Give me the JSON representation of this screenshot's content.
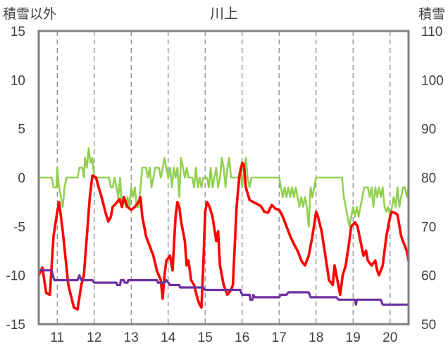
{
  "chart_data": {
    "type": "line",
    "title": "川上",
    "ylabel_left": "積雪以外",
    "ylabel_right": "積雪",
    "x_ticks": [
      "11",
      "12",
      "13",
      "14",
      "15",
      "16",
      "17",
      "18",
      "19",
      "20"
    ],
    "x_start": 10.5,
    "x_end": 20.5,
    "ylim_left": [
      -15,
      15
    ],
    "ylim_right": [
      50,
      110
    ],
    "yticks_left": [
      "15",
      "10",
      "5",
      "0",
      "-5",
      "-10",
      "-15"
    ],
    "yticks_right": [
      "110",
      "100",
      "90",
      "80",
      "70",
      "60",
      "50"
    ],
    "grid": "vertical dashed lines at each day",
    "series": [
      {
        "axis": "left",
        "color": "#ff0000",
        "points": [
          [
            10.5,
            -10
          ],
          [
            10.6,
            -9.2
          ],
          [
            10.7,
            -11.8
          ],
          [
            10.8,
            -12
          ],
          [
            10.9,
            -6
          ],
          [
            11.0,
            -3.5
          ],
          [
            11.05,
            -2.5
          ],
          [
            11.15,
            -5.5
          ],
          [
            11.3,
            -11
          ],
          [
            11.45,
            -13.3
          ],
          [
            11.55,
            -13.5
          ],
          [
            11.65,
            -11
          ],
          [
            11.72,
            -10
          ],
          [
            11.8,
            -6
          ],
          [
            11.88,
            -2
          ],
          [
            11.95,
            0.2
          ],
          [
            12.05,
            0
          ],
          [
            12.12,
            -1
          ],
          [
            12.2,
            -2
          ],
          [
            12.3,
            -3.5
          ],
          [
            12.38,
            -4.5
          ],
          [
            12.45,
            -4
          ],
          [
            12.5,
            -3
          ],
          [
            12.6,
            -2.6
          ],
          [
            12.68,
            -2.2
          ],
          [
            12.75,
            -3
          ],
          [
            12.8,
            -2
          ],
          [
            12.9,
            -3
          ],
          [
            13.0,
            -3.3
          ],
          [
            13.1,
            -3
          ],
          [
            13.2,
            -2.5
          ],
          [
            13.25,
            -2
          ],
          [
            13.3,
            -4
          ],
          [
            13.4,
            -6
          ],
          [
            13.5,
            -7
          ],
          [
            13.6,
            -8
          ],
          [
            13.7,
            -9.6
          ],
          [
            13.8,
            -10.5
          ],
          [
            13.85,
            -12.4
          ],
          [
            13.9,
            -10
          ],
          [
            13.95,
            -8.5
          ],
          [
            14.05,
            -8
          ],
          [
            14.12,
            -9.5
          ],
          [
            14.2,
            -4
          ],
          [
            14.25,
            -2.5
          ],
          [
            14.3,
            -3
          ],
          [
            14.35,
            -4.5
          ],
          [
            14.45,
            -6.5
          ],
          [
            14.5,
            -9
          ],
          [
            14.55,
            -8.5
          ],
          [
            14.62,
            -10.5
          ],
          [
            14.7,
            -11
          ],
          [
            14.8,
            -12.5
          ],
          [
            14.85,
            -13
          ],
          [
            14.9,
            -13.3
          ],
          [
            14.95,
            -9
          ],
          [
            15.0,
            -3.5
          ],
          [
            15.05,
            -2.5
          ],
          [
            15.12,
            -3
          ],
          [
            15.2,
            -4
          ],
          [
            15.3,
            -6.5
          ],
          [
            15.35,
            -5.5
          ],
          [
            15.4,
            -9
          ],
          [
            15.5,
            -11
          ],
          [
            15.6,
            -12
          ],
          [
            15.7,
            -11.5
          ],
          [
            15.75,
            -11
          ],
          [
            15.85,
            -3
          ],
          [
            15.92,
            0
          ],
          [
            16.0,
            1.5
          ],
          [
            16.05,
            1.3
          ],
          [
            16.1,
            -1
          ],
          [
            16.2,
            -2.3
          ],
          [
            16.3,
            -2.5
          ],
          [
            16.4,
            -2.7
          ],
          [
            16.5,
            -2.9
          ],
          [
            16.6,
            -3.5
          ],
          [
            16.7,
            -3.6
          ],
          [
            16.8,
            -2.8
          ],
          [
            16.9,
            -3.2
          ],
          [
            17.0,
            -3.3
          ],
          [
            17.1,
            -4
          ],
          [
            17.2,
            -5
          ],
          [
            17.3,
            -6
          ],
          [
            17.4,
            -6.8
          ],
          [
            17.5,
            -7.5
          ],
          [
            17.6,
            -8.5
          ],
          [
            17.7,
            -9
          ],
          [
            17.8,
            -8
          ],
          [
            17.9,
            -6
          ],
          [
            18.0,
            -3.5
          ],
          [
            18.05,
            -4
          ],
          [
            18.15,
            -5.5
          ],
          [
            18.25,
            -8
          ],
          [
            18.35,
            -10.5
          ],
          [
            18.45,
            -11
          ],
          [
            18.5,
            -9
          ],
          [
            18.55,
            -10
          ],
          [
            18.6,
            -11
          ],
          [
            18.65,
            -12
          ],
          [
            18.72,
            -10
          ],
          [
            18.8,
            -9
          ],
          [
            18.88,
            -7
          ],
          [
            18.95,
            -5
          ],
          [
            19.05,
            -4.6
          ],
          [
            19.12,
            -5
          ],
          [
            19.2,
            -6.5
          ],
          [
            19.28,
            -8
          ],
          [
            19.35,
            -7.5
          ],
          [
            19.4,
            -8.5
          ],
          [
            19.5,
            -9
          ],
          [
            19.6,
            -8.5
          ],
          [
            19.65,
            -9.5
          ],
          [
            19.7,
            -10
          ],
          [
            19.8,
            -9
          ],
          [
            19.9,
            -6
          ],
          [
            20.0,
            -4
          ],
          [
            20.05,
            -3.5
          ],
          [
            20.12,
            -3.6
          ],
          [
            20.2,
            -3.8
          ],
          [
            20.3,
            -6
          ],
          [
            20.38,
            -6.8
          ],
          [
            20.45,
            -7.5
          ],
          [
            20.5,
            -8.5
          ]
        ]
      },
      {
        "axis": "left",
        "color": "#92d050",
        "points": [
          [
            10.5,
            0
          ],
          [
            10.85,
            0
          ],
          [
            10.9,
            -1
          ],
          [
            10.98,
            -1
          ],
          [
            11.0,
            1
          ],
          [
            11.05,
            -1
          ],
          [
            11.1,
            -2
          ],
          [
            11.15,
            -3
          ],
          [
            11.2,
            -1
          ],
          [
            11.25,
            0
          ],
          [
            11.55,
            0
          ],
          [
            11.6,
            1
          ],
          [
            11.68,
            1
          ],
          [
            11.72,
            0
          ],
          [
            11.75,
            2
          ],
          [
            11.8,
            1
          ],
          [
            11.85,
            3
          ],
          [
            11.9,
            1.5
          ],
          [
            11.95,
            2
          ],
          [
            12.0,
            0
          ],
          [
            12.4,
            0
          ],
          [
            12.45,
            -1
          ],
          [
            12.5,
            -1
          ],
          [
            12.55,
            0
          ],
          [
            12.6,
            -1
          ],
          [
            12.65,
            -2
          ],
          [
            12.7,
            0
          ],
          [
            12.75,
            -3
          ],
          [
            12.8,
            -2
          ],
          [
            12.85,
            -3
          ],
          [
            12.9,
            -2
          ],
          [
            12.95,
            -3
          ],
          [
            13.0,
            -1
          ],
          [
            13.05,
            -2
          ],
          [
            13.1,
            -1
          ],
          [
            13.15,
            -3
          ],
          [
            13.2,
            -3
          ],
          [
            13.25,
            -1
          ],
          [
            13.3,
            1
          ],
          [
            13.4,
            1
          ],
          [
            13.45,
            0
          ],
          [
            13.5,
            1
          ],
          [
            13.55,
            -1
          ],
          [
            13.6,
            0
          ],
          [
            13.65,
            1
          ],
          [
            13.75,
            1
          ],
          [
            13.8,
            0
          ],
          [
            13.85,
            1
          ],
          [
            13.9,
            2
          ],
          [
            13.95,
            1
          ],
          [
            14.0,
            0
          ],
          [
            14.05,
            1
          ],
          [
            14.1,
            -1
          ],
          [
            14.15,
            1
          ],
          [
            14.2,
            0
          ],
          [
            14.25,
            1
          ],
          [
            14.3,
            -2
          ],
          [
            14.35,
            2
          ],
          [
            14.4,
            1
          ],
          [
            14.45,
            0
          ],
          [
            14.5,
            1
          ],
          [
            14.55,
            0
          ],
          [
            14.65,
            0
          ],
          [
            14.7,
            -1
          ],
          [
            14.75,
            1
          ],
          [
            14.8,
            -1
          ],
          [
            14.85,
            0
          ],
          [
            14.9,
            -1
          ],
          [
            14.95,
            0
          ],
          [
            15.05,
            0
          ],
          [
            15.1,
            -1
          ],
          [
            15.15,
            1
          ],
          [
            15.2,
            -1
          ],
          [
            15.25,
            0
          ],
          [
            15.3,
            1
          ],
          [
            15.35,
            -1
          ],
          [
            15.4,
            0
          ],
          [
            15.45,
            2
          ],
          [
            15.5,
            1
          ],
          [
            15.55,
            -1
          ],
          [
            15.6,
            1
          ],
          [
            15.65,
            2
          ],
          [
            15.7,
            0
          ],
          [
            15.9,
            0
          ],
          [
            15.95,
            1
          ],
          [
            16.0,
            -1
          ],
          [
            16.05,
            1
          ],
          [
            16.1,
            2
          ],
          [
            16.15,
            0
          ],
          [
            16.2,
            -1
          ],
          [
            16.25,
            0
          ],
          [
            17.0,
            0
          ],
          [
            17.05,
            -1
          ],
          [
            17.1,
            -2
          ],
          [
            17.15,
            -1
          ],
          [
            17.2,
            -2
          ],
          [
            17.25,
            -1
          ],
          [
            17.3,
            -2
          ],
          [
            17.35,
            -1
          ],
          [
            17.4,
            -2
          ],
          [
            17.45,
            -1
          ],
          [
            17.5,
            -2
          ],
          [
            17.55,
            -3
          ],
          [
            17.6,
            -2
          ],
          [
            17.65,
            -3
          ],
          [
            17.7,
            -2
          ],
          [
            17.75,
            -3
          ],
          [
            17.8,
            -5
          ],
          [
            17.85,
            -1
          ],
          [
            17.9,
            -2
          ],
          [
            17.95,
            -1
          ],
          [
            18.0,
            0
          ],
          [
            18.7,
            0
          ],
          [
            18.75,
            -2
          ],
          [
            18.8,
            -3
          ],
          [
            18.85,
            -4
          ],
          [
            18.9,
            -5
          ],
          [
            18.95,
            -4
          ],
          [
            19.0,
            -3
          ],
          [
            19.05,
            -4
          ],
          [
            19.1,
            -3
          ],
          [
            19.15,
            -4
          ],
          [
            19.2,
            -3
          ],
          [
            19.25,
            -2
          ],
          [
            19.3,
            -1
          ],
          [
            19.4,
            -1
          ],
          [
            19.45,
            -2
          ],
          [
            19.5,
            -1
          ],
          [
            19.55,
            -3
          ],
          [
            19.6,
            -1
          ],
          [
            19.65,
            -2
          ],
          [
            19.7,
            -1
          ],
          [
            19.75,
            -2
          ],
          [
            19.8,
            -1
          ],
          [
            19.85,
            -3
          ],
          [
            19.9,
            -3.5
          ],
          [
            19.95,
            -3
          ],
          [
            20.0,
            -4
          ],
          [
            20.05,
            -3
          ],
          [
            20.1,
            -2
          ],
          [
            20.15,
            -3
          ],
          [
            20.2,
            -1
          ],
          [
            20.25,
            -3
          ],
          [
            20.3,
            -2
          ],
          [
            20.35,
            -1
          ],
          [
            20.4,
            -1
          ],
          [
            20.45,
            -2
          ],
          [
            20.5,
            -1
          ]
        ]
      },
      {
        "axis": "right",
        "color": "#7030a0",
        "points": [
          [
            10.5,
            61
          ],
          [
            10.85,
            61
          ],
          [
            10.88,
            60
          ],
          [
            10.92,
            59
          ],
          [
            11.0,
            59
          ],
          [
            11.55,
            59
          ],
          [
            11.6,
            60
          ],
          [
            11.65,
            59
          ],
          [
            11.95,
            59
          ],
          [
            12.0,
            58.5
          ],
          [
            12.6,
            58.5
          ],
          [
            12.62,
            58
          ],
          [
            12.7,
            58
          ],
          [
            12.72,
            59
          ],
          [
            12.8,
            59
          ],
          [
            12.82,
            58.5
          ],
          [
            12.9,
            58.5
          ],
          [
            12.92,
            59
          ],
          [
            13.7,
            59
          ],
          [
            13.72,
            58.5
          ],
          [
            13.9,
            58.5
          ],
          [
            13.95,
            59
          ],
          [
            14.0,
            58.5
          ],
          [
            14.05,
            58
          ],
          [
            14.3,
            58
          ],
          [
            14.32,
            57.5
          ],
          [
            14.95,
            57.5
          ],
          [
            15.0,
            57
          ],
          [
            15.95,
            57
          ],
          [
            16.0,
            56
          ],
          [
            16.2,
            56
          ],
          [
            16.22,
            55
          ],
          [
            16.28,
            55
          ],
          [
            16.3,
            56
          ],
          [
            16.35,
            55.5
          ],
          [
            17.0,
            55.5
          ],
          [
            17.05,
            56
          ],
          [
            17.2,
            56
          ],
          [
            17.25,
            56.5
          ],
          [
            17.8,
            56.5
          ],
          [
            17.85,
            55.5
          ],
          [
            18.55,
            55.5
          ],
          [
            18.6,
            55
          ],
          [
            19.05,
            55
          ],
          [
            19.08,
            54
          ],
          [
            19.1,
            55
          ],
          [
            19.75,
            55
          ],
          [
            19.8,
            54
          ],
          [
            20.5,
            54
          ]
        ]
      }
    ]
  }
}
